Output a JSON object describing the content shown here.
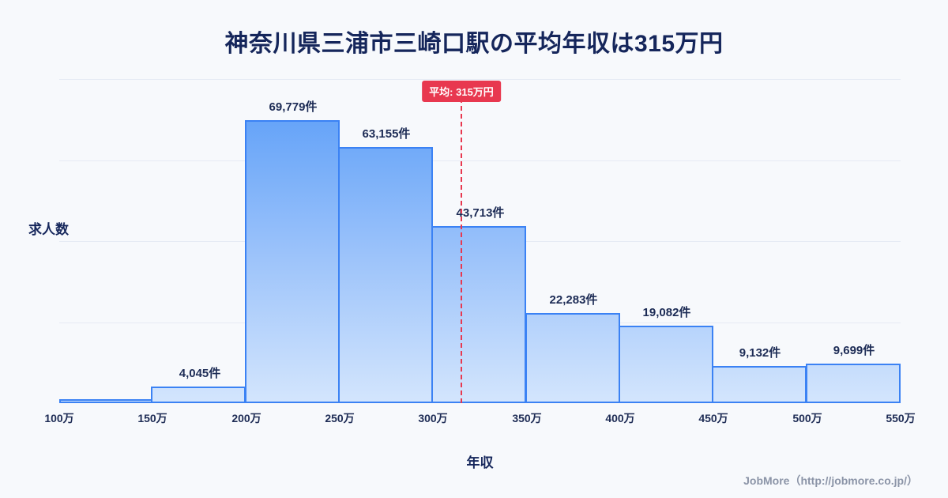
{
  "title": "神奈川県三浦市三崎口駅の平均年収は315万円",
  "chart_data": {
    "type": "bar",
    "title": "神奈川県三浦市三崎口駅の平均年収は315万円",
    "xlabel": "年収",
    "ylabel": "求人数",
    "ylim": [
      0,
      80000
    ],
    "grid": "faint horizontal",
    "x_ticks": [
      "100万",
      "150万",
      "200万",
      "250万",
      "300万",
      "350万",
      "400万",
      "450万",
      "500万",
      "550万"
    ],
    "bin_ranges": [
      "100万-150万",
      "150万-200万",
      "200万-250万",
      "250万-300万",
      "300万-350万",
      "350万-400万",
      "400万-450万",
      "450万-500万",
      "500万-550万"
    ],
    "values": [
      1000,
      4045,
      69779,
      63155,
      43713,
      22283,
      19082,
      9132,
      9699
    ],
    "bar_labels": [
      "",
      "4,045件",
      "69,779件",
      "63,155件",
      "43,713件",
      "22,283件",
      "19,082件",
      "9,132件",
      "9,699件"
    ],
    "average": {
      "value": 315,
      "label": "平均: 315万円",
      "axis_min": 100,
      "axis_max": 550
    },
    "colors": {
      "bar_fill_top": "#559af8",
      "bar_fill_bottom": "#d3e5fd",
      "bar_border": "#3b82f4",
      "average_line": "#e8384f",
      "text": "#15265b",
      "background": "#f7f9fc"
    }
  },
  "footer": {
    "credit": "JobMore（http://jobmore.co.jp/）"
  }
}
